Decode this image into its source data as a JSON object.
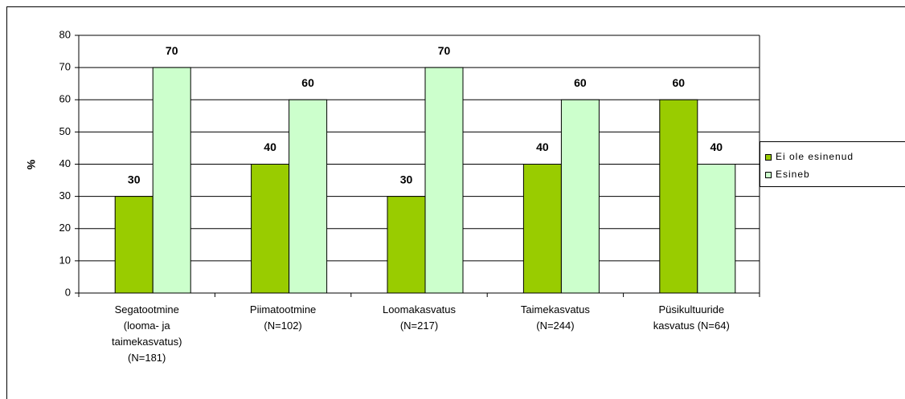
{
  "chart_data": {
    "type": "bar",
    "ylabel": "%",
    "categories": [
      "Segatootmine\n(looma- ja\ntaimekasvatus)\n(N=181)",
      "Piimatootmine\n(N=102)",
      "Loomakasvatus\n(N=217)",
      "Taimekasvatus\n(N=244)",
      "Püsikultuuride\nkasvatus (N=64)"
    ],
    "series": [
      {
        "name": "Ei ole esinenud",
        "color": "#99cc00",
        "values": [
          30,
          40,
          30,
          40,
          60
        ]
      },
      {
        "name": "Esineb",
        "color": "#ccffcc",
        "values": [
          70,
          60,
          70,
          60,
          40
        ]
      }
    ],
    "ylim": [
      0,
      80
    ],
    "yticks": [
      0,
      10,
      20,
      30,
      40,
      50,
      60,
      70,
      80
    ],
    "grid": true,
    "legend": "right"
  }
}
